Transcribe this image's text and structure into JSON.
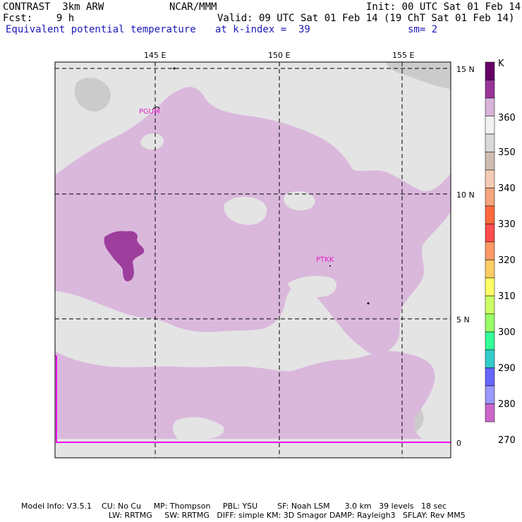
{
  "header": {
    "title": "CONTRAST  3km ARW",
    "center": "NCAR/MMM",
    "init": "Init: 00 UTC Sat 01 Feb 14",
    "fcst": "Fcst:    9 h",
    "valid": "Valid: 09 UTC Sat 01 Feb 14 (19 ChT Sat 01 Feb 14)",
    "field": "Equivalent potential temperature",
    "level": "at k-index =  39",
    "smooth": "sm= 2"
  },
  "map": {
    "lon_labels": [
      "145 E",
      "150 E",
      "155 E"
    ],
    "lat_labels": [
      "15 N",
      "10 N",
      "5 N",
      "0"
    ],
    "stations": [
      "PGUM",
      "PTKK"
    ],
    "colors": {
      "background": "#e4e4e4",
      "theta_360": "#dab8dc",
      "theta_365": "#9d3e9d",
      "land_gray": "#cbcbcb",
      "magenta_line": "#ff00ff"
    }
  },
  "colorbar": {
    "unit": "K",
    "ticks": [
      "360",
      "350",
      "340",
      "330",
      "320",
      "310",
      "300",
      "290",
      "280",
      "270"
    ],
    "colors": [
      "#660066",
      "#993399",
      "#d9b3d9",
      "#f2f2f2",
      "#d9d9d9",
      "#cdbcb0",
      "#f4cbb3",
      "#f6a57e",
      "#ff6a3d",
      "#ff4d4d",
      "#ff9966",
      "#ffcc66",
      "#ffff66",
      "#ccff66",
      "#99ff66",
      "#33ff99",
      "#33cccc",
      "#6666ff",
      "#9999ff",
      "#cc66cc"
    ]
  },
  "footer": {
    "line1": "Model Info: V3.5.1    CU: No Cu     MP: Thompson     PBL: YSU        SF: Noah LSM      3.0 km   39 levels   18 sec",
    "line2": "LW: RRTMG     SW: RRTMG   DIFF: simple KM: 3D Smagor DAMP: Rayleigh3   SFLAY: Rev MM5"
  }
}
